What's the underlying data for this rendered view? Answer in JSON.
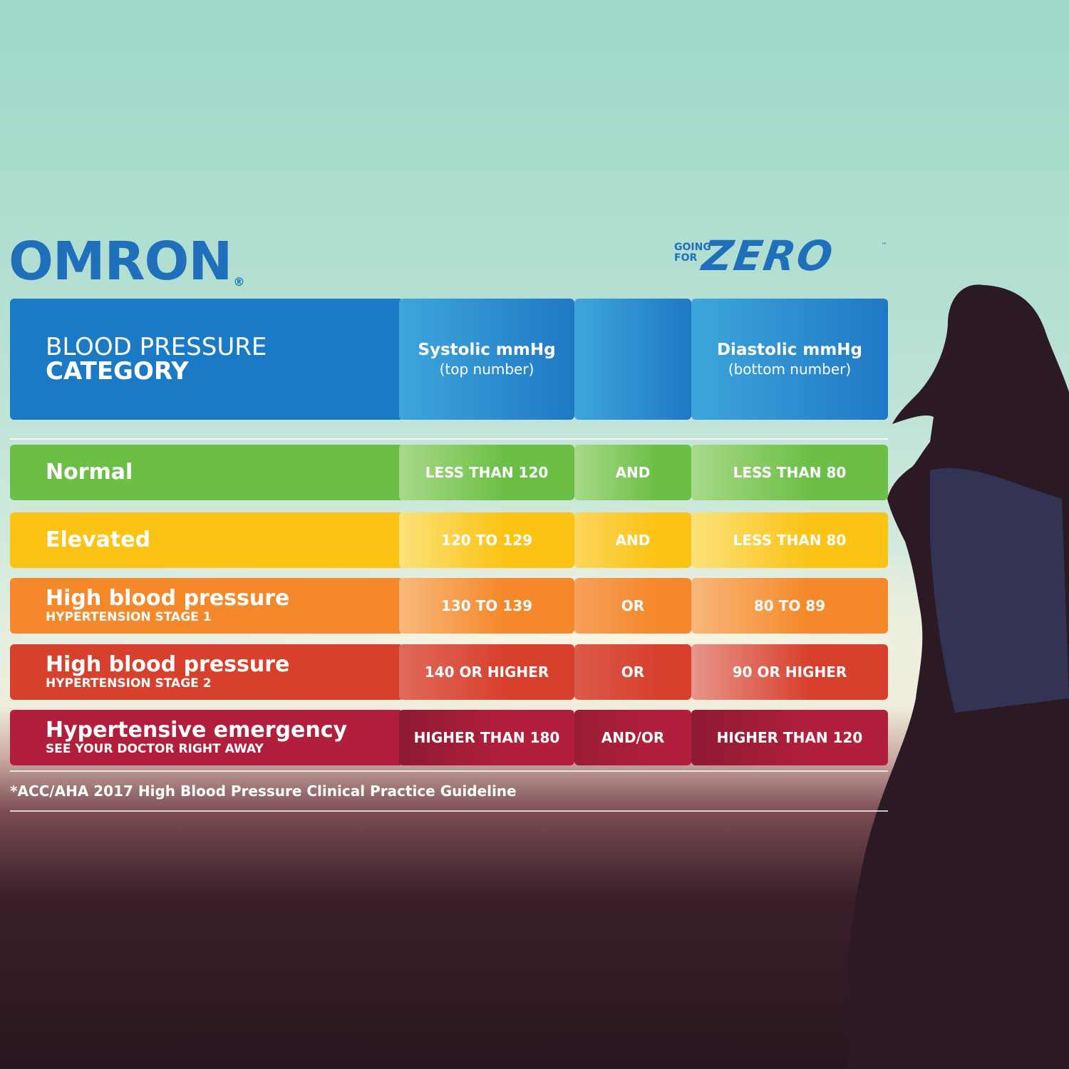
{
  "brand": {
    "logo_text": "OMRON",
    "registered_mark": "®"
  },
  "campaign": {
    "line1": "GOING",
    "line2": "FOR",
    "word": "ZERO",
    "tm": "™"
  },
  "header": {
    "category_line1": "BLOOD PRESSURE",
    "category_line2": "CATEGORY",
    "systolic_title": "Systolic mmHg",
    "systolic_sub": "(top number)",
    "diastolic_title": "Diastolic mmHg",
    "diastolic_sub": "(bottom number)"
  },
  "rows": [
    {
      "category": "Normal",
      "sub": "",
      "systolic": "LESS THAN 120",
      "connector": "AND",
      "diastolic": "LESS THAN 80",
      "color": "#6cbf45"
    },
    {
      "category": "Elevated",
      "sub": "",
      "systolic": "120 TO 129",
      "connector": "AND",
      "diastolic": "LESS THAN 80",
      "color": "#fbc314"
    },
    {
      "category": "High blood pressure",
      "sub": "HYPERTENSION STAGE 1",
      "systolic": "130 TO 139",
      "connector": "OR",
      "diastolic": "80 TO 89",
      "color": "#f5882a"
    },
    {
      "category": "High blood pressure",
      "sub": "HYPERTENSION STAGE 2",
      "systolic": "140 OR HIGHER",
      "connector": "OR",
      "diastolic": "90 OR HIGHER",
      "color": "#d8402e"
    },
    {
      "category": "Hypertensive emergency",
      "sub": "SEE YOUR DOCTOR RIGHT AWAY",
      "systolic": "HIGHER THAN 180",
      "connector": "AND/OR",
      "diastolic": "HIGHER THAN 120",
      "color": "#b11f3c"
    }
  ],
  "footnote": "*ACC/AHA 2017 High Blood Pressure Clinical Practice Guideline"
}
